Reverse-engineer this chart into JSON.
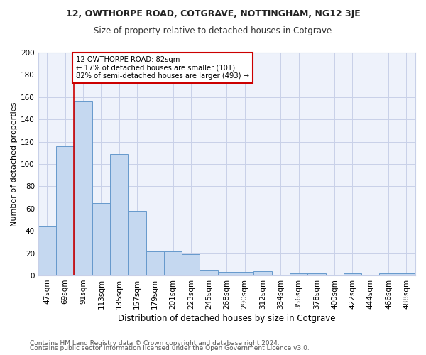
{
  "title1": "12, OWTHORPE ROAD, COTGRAVE, NOTTINGHAM, NG12 3JE",
  "title2": "Size of property relative to detached houses in Cotgrave",
  "xlabel": "Distribution of detached houses by size in Cotgrave",
  "ylabel": "Number of detached properties",
  "categories": [
    "47sqm",
    "69sqm",
    "91sqm",
    "113sqm",
    "135sqm",
    "157sqm",
    "179sqm",
    "201sqm",
    "223sqm",
    "245sqm",
    "268sqm",
    "290sqm",
    "312sqm",
    "334sqm",
    "356sqm",
    "378sqm",
    "400sqm",
    "422sqm",
    "444sqm",
    "466sqm",
    "488sqm"
  ],
  "values": [
    44,
    116,
    157,
    65,
    109,
    58,
    22,
    22,
    19,
    5,
    3,
    3,
    4,
    0,
    2,
    2,
    0,
    2,
    0,
    2,
    2
  ],
  "bar_color": "#c5d8f0",
  "bar_edge_color": "#6699cc",
  "annotation_text": "12 OWTHORPE ROAD: 82sqm\n← 17% of detached houses are smaller (101)\n82% of semi-detached houses are larger (493) →",
  "annotation_box_color": "#ffffff",
  "annotation_box_edge_color": "#cc0000",
  "vline_color": "#cc0000",
  "vline_x": 1.5,
  "footer1": "Contains HM Land Registry data © Crown copyright and database right 2024.",
  "footer2": "Contains public sector information licensed under the Open Government Licence v3.0.",
  "bg_color": "#ffffff",
  "plot_bg_color": "#eef2fb",
  "ylim": [
    0,
    200
  ],
  "yticks": [
    0,
    20,
    40,
    60,
    80,
    100,
    120,
    140,
    160,
    180,
    200
  ],
  "grid_color": "#c8d0e8",
  "title1_fontsize": 9,
  "title2_fontsize": 8.5,
  "xlabel_fontsize": 8.5,
  "ylabel_fontsize": 8,
  "tick_fontsize": 7.5,
  "footer_fontsize": 6.5
}
